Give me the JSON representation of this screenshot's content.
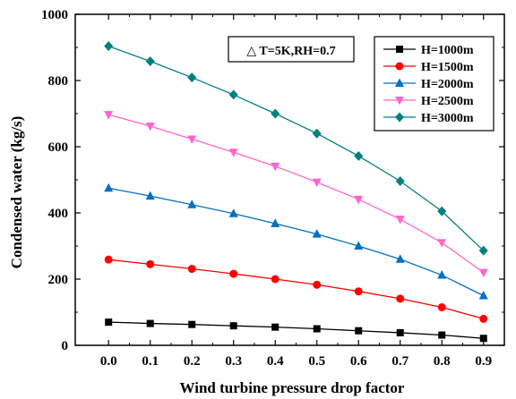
{
  "chart_data": {
    "type": "line",
    "title": "",
    "xlabel": "Wind turbine pressure drop factor",
    "ylabel": "Condensed water (kg/s)",
    "xlim": [
      -0.08,
      0.95
    ],
    "ylim": [
      0,
      1000
    ],
    "x": [
      0.0,
      0.1,
      0.2,
      0.3,
      0.4,
      0.5,
      0.6,
      0.7,
      0.8,
      0.9
    ],
    "x_ticks": [
      "0.0",
      "0.1",
      "0.2",
      "0.3",
      "0.4",
      "0.5",
      "0.6",
      "0.7",
      "0.8",
      "0.9"
    ],
    "y_ticks": [
      "0",
      "200",
      "400",
      "600",
      "800",
      "1000"
    ],
    "grid": false,
    "legend_position": "top-right",
    "annotation": "△ T=5K,RH=0.7",
    "series": [
      {
        "name": "H=1000m",
        "color": "#000000",
        "marker": "square",
        "values": [
          70,
          66,
          63,
          59,
          55,
          50,
          44,
          38,
          31,
          21
        ]
      },
      {
        "name": "H=1500m",
        "color": "#ff0000",
        "marker": "circle",
        "values": [
          259,
          245,
          231,
          216,
          200,
          183,
          163,
          141,
          115,
          80
        ]
      },
      {
        "name": "H=2000m",
        "color": "#0070c0",
        "marker": "triangle-up",
        "values": [
          475,
          451,
          425,
          398,
          368,
          336,
          300,
          260,
          212,
          150
        ]
      },
      {
        "name": "H=2500m",
        "color": "#ff66cc",
        "marker": "triangle-down",
        "values": [
          697,
          662,
          623,
          583,
          541,
          493,
          441,
          381,
          310,
          220
        ]
      },
      {
        "name": "H=3000m",
        "color": "#008080",
        "marker": "diamond",
        "values": [
          904,
          858,
          809,
          757,
          700,
          640,
          572,
          496,
          405,
          286
        ]
      }
    ]
  }
}
